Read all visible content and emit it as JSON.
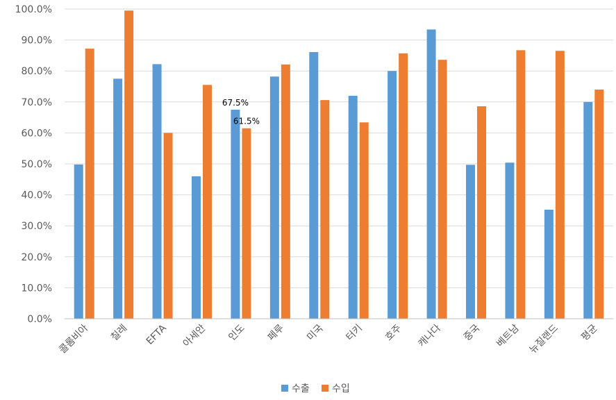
{
  "chart_data": {
    "type": "bar",
    "categories": [
      "콜롬비아",
      "칠레",
      "EFTA",
      "아세안",
      "인도",
      "페루",
      "미국",
      "터키",
      "호주",
      "캐나다",
      "중국",
      "베트남",
      "뉴질랜드",
      "평균"
    ],
    "series": [
      {
        "name": "수출",
        "color": "#5B9BD5",
        "values": [
          49.8,
          77.5,
          82.2,
          46.0,
          67.5,
          78.2,
          86.1,
          72.0,
          80.0,
          93.4,
          49.7,
          50.4,
          35.2,
          70.0
        ]
      },
      {
        "name": "수입",
        "color": "#ED7D31",
        "values": [
          87.2,
          99.5,
          60.0,
          75.5,
          61.5,
          82.1,
          70.6,
          63.4,
          85.7,
          83.6,
          68.6,
          86.7,
          86.5,
          74.0
        ]
      }
    ],
    "ylim": [
      0,
      100
    ],
    "yticks": [
      "0.0%",
      "10.0%",
      "20.0%",
      "30.0%",
      "40.0%",
      "50.0%",
      "60.0%",
      "70.0%",
      "80.0%",
      "90.0%",
      "100.0%"
    ],
    "data_labels": [
      {
        "category": "인도",
        "series": "수출",
        "text": "67.5%"
      },
      {
        "category": "인도",
        "series": "수입",
        "text": "61.5%"
      }
    ],
    "grid": true,
    "legend_position": "bottom-center",
    "gridline_color": "#D9D9D9",
    "axis_color": "#BFBFBF"
  }
}
